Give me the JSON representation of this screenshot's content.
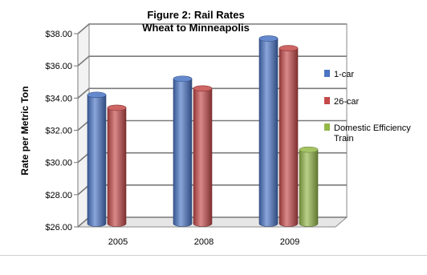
{
  "chart_data": {
    "type": "bar",
    "title": "Figure 2: Rail Rates",
    "subtitle": "Wheat to Minneapolis",
    "ylabel": "Rate per Metric Ton",
    "xlabel": "",
    "categories": [
      "2005",
      "2008",
      "2009"
    ],
    "ylim": [
      26,
      38
    ],
    "y_ticks": [
      "$26.00",
      "$28.00",
      "$30.00",
      "$32.00",
      "$34.00",
      "$36.00",
      "$38.00"
    ],
    "grid": true,
    "legend_position": "right",
    "series": [
      {
        "name": "1-car",
        "color": "#4a74c4",
        "values": [
          33.9,
          34.9,
          37.4
        ]
      },
      {
        "name": "26-car",
        "color": "#c44a4a",
        "values": [
          33.1,
          34.3,
          36.8
        ]
      },
      {
        "name": "Domestic Efficiency Train",
        "legend_lines": [
          "Domestic Efficiency",
          "Train"
        ],
        "color": "#94b84a",
        "values": [
          null,
          null,
          30.5
        ]
      }
    ]
  }
}
